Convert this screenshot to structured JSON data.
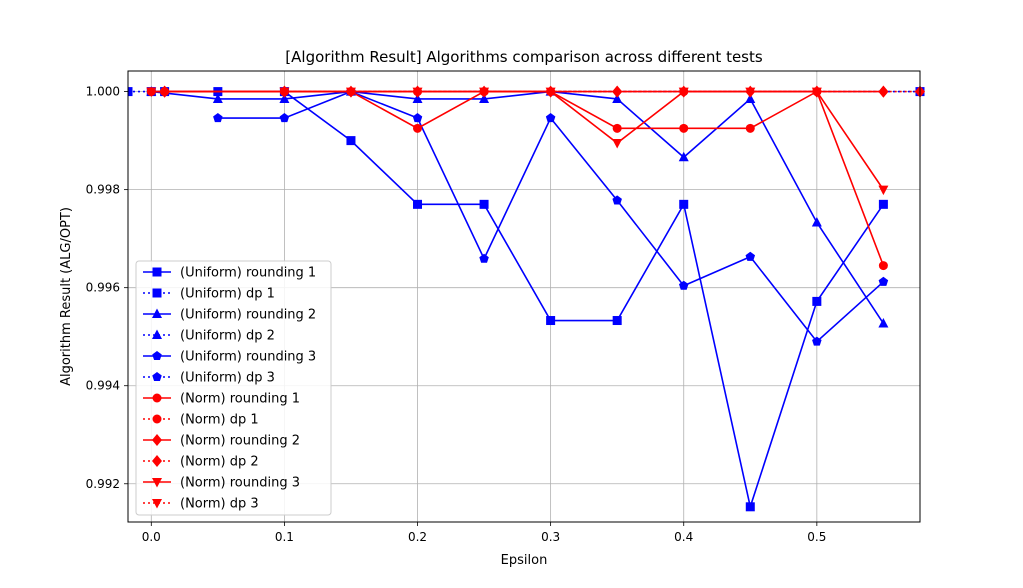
{
  "chart_data": {
    "type": "line",
    "title": "[Algorithm Result] Algorithms comparison across different tests",
    "xlabel": "Epsilon",
    "ylabel": "Algorithm Result (ALG/OPT)",
    "xlim": [
      -0.0175,
      0.5775
    ],
    "ylim": [
      0.99122,
      1.00042
    ],
    "xticks": [
      0.0,
      0.1,
      0.2,
      0.3,
      0.4,
      0.5
    ],
    "xtick_labels": [
      "0.0",
      "0.1",
      "0.2",
      "0.3",
      "0.4",
      "0.5"
    ],
    "yticks": [
      0.992,
      0.994,
      0.996,
      0.998,
      1.0
    ],
    "ytick_labels": [
      "0.992",
      "0.994",
      "0.996",
      "0.998",
      "1.000"
    ],
    "grid": true,
    "legend_position": "lower-left",
    "series": [
      {
        "name": "(Uniform) rounding 1",
        "color": "#0000ff",
        "marker": "square",
        "linestyle": "solid",
        "x": [
          0.0,
          0.01,
          0.05,
          0.1,
          0.15,
          0.2,
          0.25,
          0.3,
          0.35,
          0.4,
          0.45,
          0.5,
          0.55
        ],
        "y": [
          1.0,
          1.0,
          1.0,
          1.0,
          0.999,
          0.9977,
          0.9977,
          0.99533,
          0.99533,
          0.9977,
          0.99153,
          0.99572,
          0.9977
        ]
      },
      {
        "name": "(Uniform) dp 1",
        "color": "#0000ff",
        "marker": "square",
        "linestyle": "dotted",
        "x": [
          -0.0175,
          0.5775
        ],
        "y": [
          1.0,
          1.0
        ]
      },
      {
        "name": "(Uniform) rounding 2",
        "color": "#0000ff",
        "marker": "triangle-up",
        "linestyle": "solid",
        "x": [
          0.0,
          0.05,
          0.1,
          0.15,
          0.2,
          0.25,
          0.3,
          0.35,
          0.4,
          0.45,
          0.5,
          0.55
        ],
        "y": [
          1.0,
          0.99985,
          0.99985,
          1.0,
          0.99985,
          0.99985,
          1.0,
          0.99985,
          0.99866,
          0.99985,
          0.99733,
          0.99527
        ]
      },
      {
        "name": "(Uniform) dp 2",
        "color": "#0000ff",
        "marker": "triangle-up",
        "linestyle": "dotted",
        "x": [],
        "y": []
      },
      {
        "name": "(Uniform) rounding 3",
        "color": "#0000ff",
        "marker": "pentagon",
        "linestyle": "solid",
        "x": [
          0.05,
          0.1,
          0.15,
          0.2,
          0.25,
          0.3,
          0.35,
          0.4,
          0.45,
          0.5,
          0.55
        ],
        "y": [
          0.99946,
          0.99946,
          1.0,
          0.99946,
          0.99659,
          0.99946,
          0.99778,
          0.99604,
          0.99663,
          0.9949,
          0.99612
        ]
      },
      {
        "name": "(Uniform) dp 3",
        "color": "#0000ff",
        "marker": "pentagon",
        "linestyle": "dotted",
        "x": [],
        "y": []
      },
      {
        "name": "(Norm) rounding 1",
        "color": "#ff0000",
        "marker": "circle",
        "linestyle": "solid",
        "x": [
          0.0,
          0.01,
          0.1,
          0.15,
          0.2,
          0.25,
          0.3,
          0.35,
          0.4,
          0.45,
          0.5,
          0.55
        ],
        "y": [
          1.0,
          1.0,
          1.0,
          1.0,
          0.99925,
          1.0,
          1.0,
          0.99925,
          0.99925,
          0.99925,
          1.0,
          0.99645
        ]
      },
      {
        "name": "(Norm) dp 1",
        "color": "#ff0000",
        "marker": "circle",
        "linestyle": "dotted",
        "x": [
          0.01,
          0.1,
          0.2,
          0.25,
          0.4,
          0.5
        ],
        "y": [
          1.0,
          1.0,
          1.0,
          1.0,
          1.0,
          1.0
        ]
      },
      {
        "name": "(Norm) rounding 2",
        "color": "#ff0000",
        "marker": "diamond",
        "linestyle": "solid",
        "x": [
          0.01,
          0.1,
          0.15,
          0.2,
          0.25,
          0.3,
          0.35,
          0.4,
          0.45,
          0.5,
          0.55
        ],
        "y": [
          1.0,
          1.0,
          1.0,
          1.0,
          1.0,
          1.0,
          1.0,
          1.0,
          1.0,
          1.0,
          1.0
        ]
      },
      {
        "name": "(Norm) dp 2",
        "color": "#ff0000",
        "marker": "diamond",
        "linestyle": "dotted",
        "x": [
          0.01,
          0.1,
          0.2,
          0.35,
          0.5,
          0.55,
          0.5775
        ],
        "y": [
          1.0,
          1.0,
          1.0,
          1.0,
          1.0,
          1.0,
          1.0
        ]
      },
      {
        "name": "(Norm) rounding 3",
        "color": "#ff0000",
        "marker": "triangle-down",
        "linestyle": "solid",
        "x": [
          0.0,
          0.1,
          0.15,
          0.2,
          0.25,
          0.3,
          0.35,
          0.4,
          0.45,
          0.5,
          0.55
        ],
        "y": [
          1.0,
          1.0,
          1.0,
          1.0,
          1.0,
          1.0,
          0.99895,
          1.0,
          1.0,
          1.0,
          0.998
        ]
      },
      {
        "name": "(Norm) dp 3",
        "color": "#ff0000",
        "marker": "triangle-down",
        "linestyle": "dotted",
        "x": [],
        "y": []
      }
    ]
  }
}
